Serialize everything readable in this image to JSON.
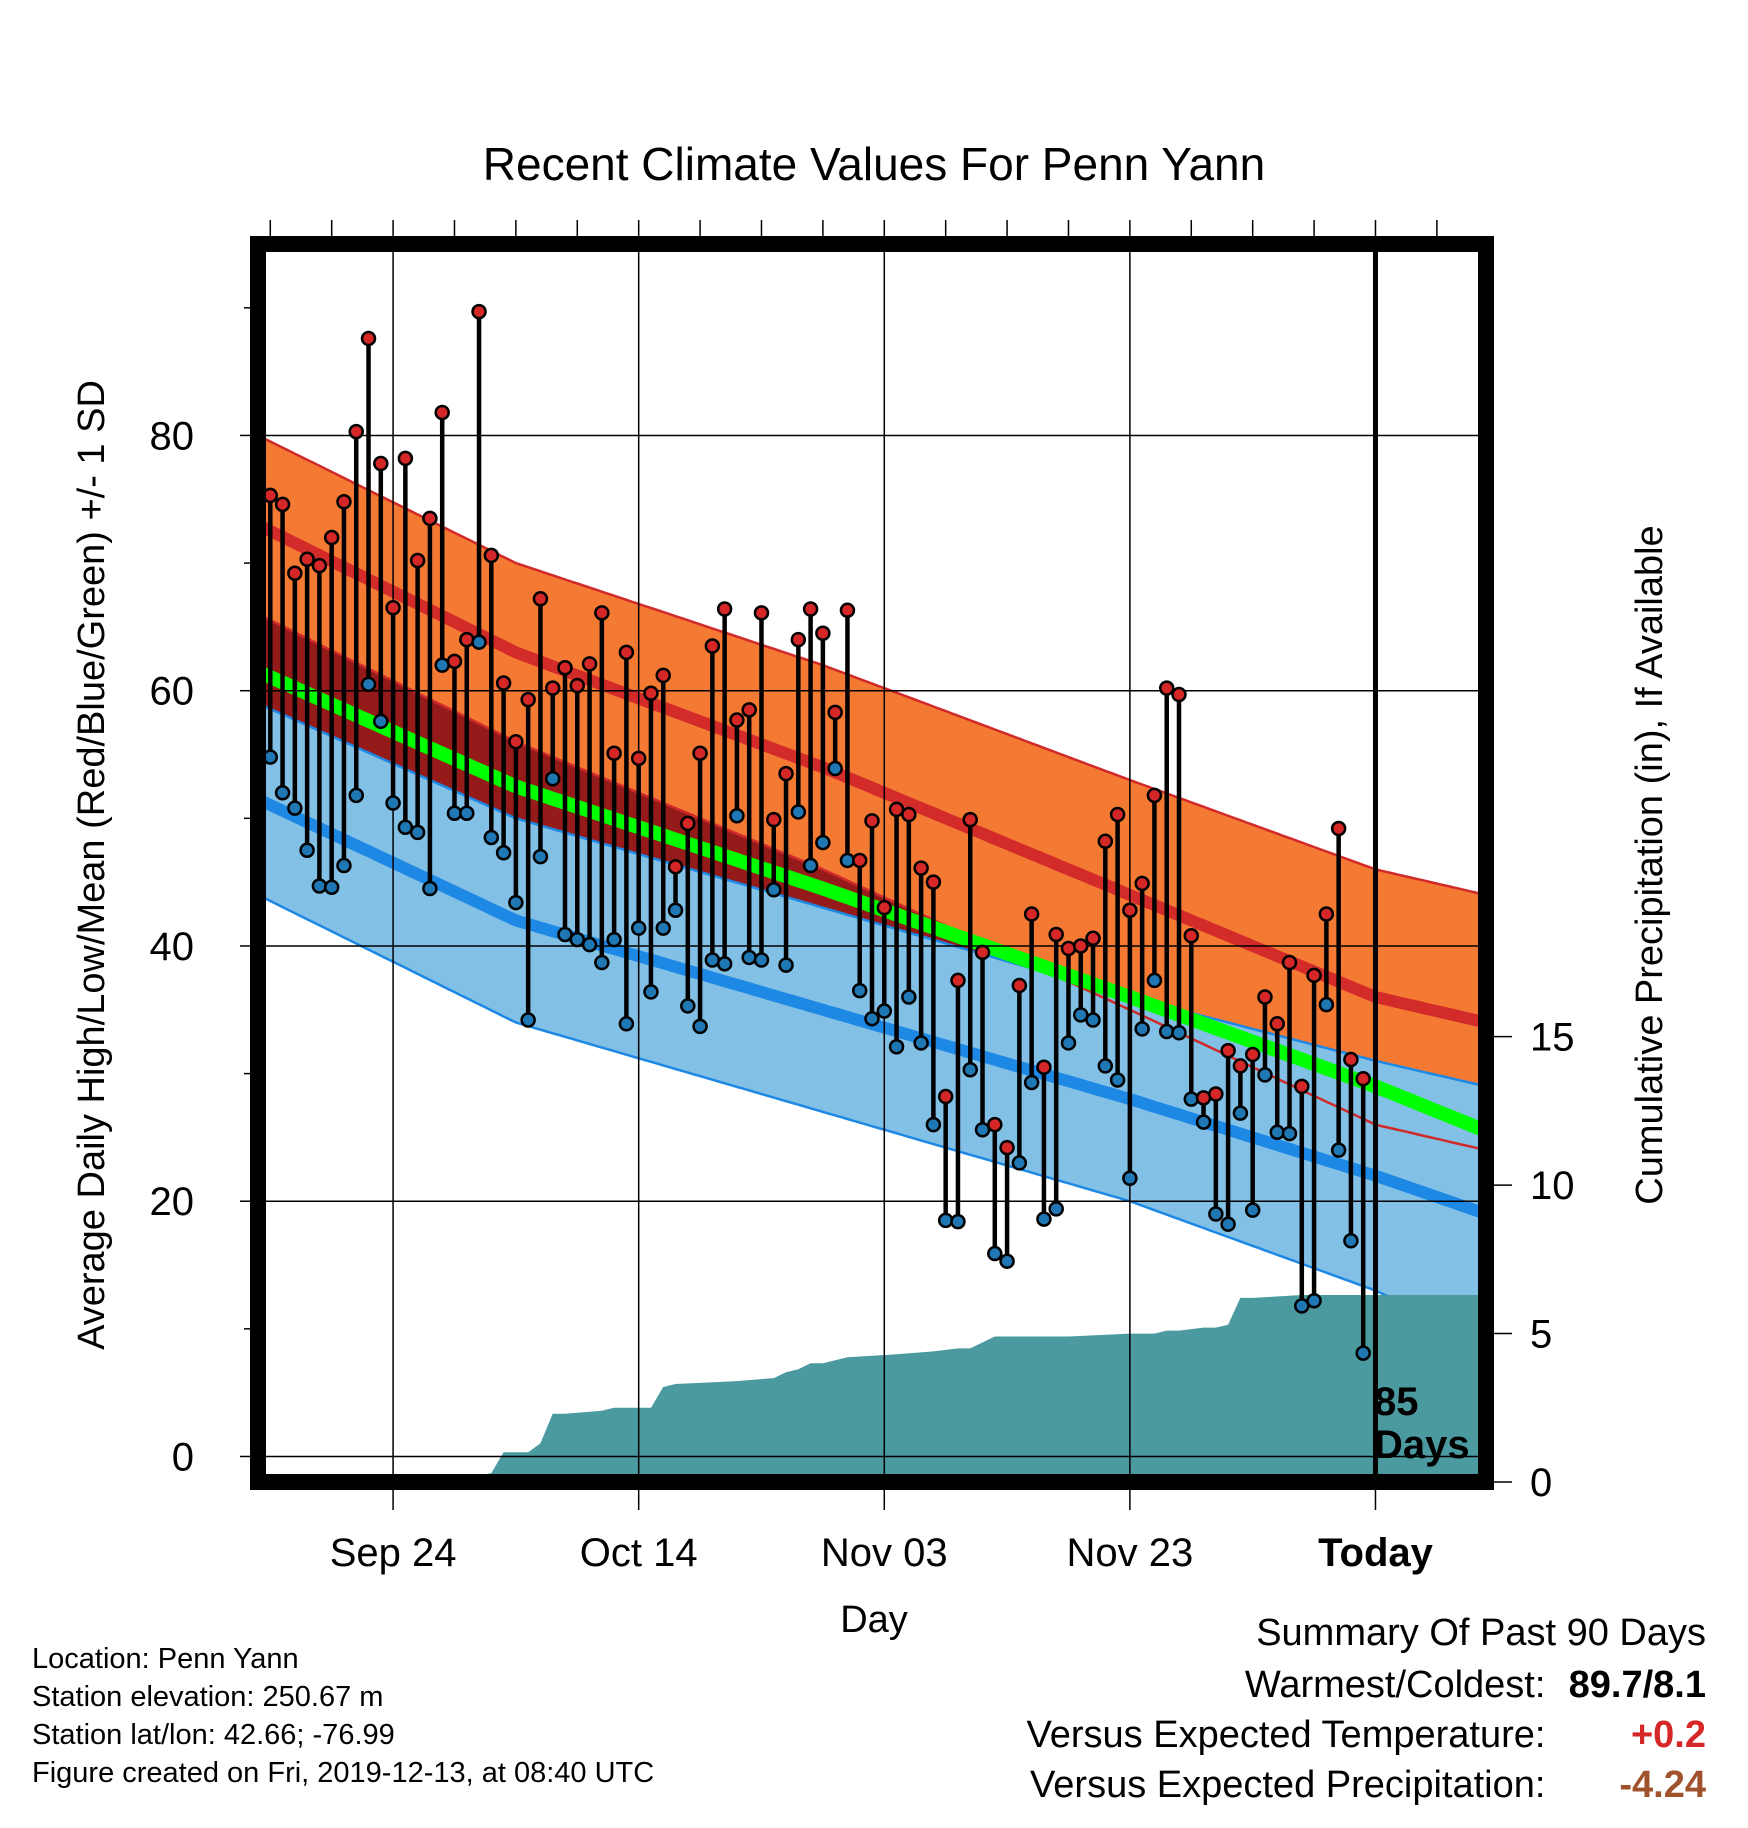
{
  "chart_data": {
    "type": "line",
    "title": "Recent Climate Values For Penn Yann",
    "xlabel": "Day",
    "ylabel_left": "Average Daily High/Low/Mean (Red/Blue/Green) +/- 1 SD",
    "ylabel_right": "Cumulative Precipitation (in), If Available",
    "x_ticks": [
      {
        "day": 10,
        "label": "Sep 24"
      },
      {
        "day": 30,
        "label": "Oct 14"
      },
      {
        "day": 50,
        "label": "Nov 03"
      },
      {
        "day": 70,
        "label": "Nov 23"
      },
      {
        "day": 90,
        "label": "Today"
      }
    ],
    "xlim": [
      -1,
      99
    ],
    "ylim_left": [
      -2,
      95
    ],
    "ylim_right": [
      0,
      41.7
    ],
    "y_ticks_left": [
      0,
      20,
      40,
      60,
      80
    ],
    "y_ticks_right": [
      0,
      5,
      10,
      15
    ],
    "today_marker": {
      "day": 90,
      "label_line1": "85",
      "label_line2": "Days"
    },
    "normals": {
      "days": [
        -1,
        20,
        45,
        70,
        90,
        99
      ],
      "high_mean": [
        73,
        63,
        54,
        44,
        36,
        34
      ],
      "high_sd": [
        7,
        7,
        8,
        9,
        10,
        10
      ],
      "low_mean": [
        51.5,
        42,
        35,
        28,
        22,
        19
      ],
      "low_sd": [
        7.5,
        8,
        8,
        8,
        9,
        10
      ],
      "avg_mean": [
        61.5,
        52.5,
        44.5,
        36,
        29,
        25.5
      ]
    },
    "series": [
      {
        "name": "High",
        "color": "#d62728",
        "days": [
          0,
          1,
          2,
          3,
          4,
          5,
          6,
          7,
          8,
          9,
          10,
          11,
          12,
          13,
          14,
          15,
          16,
          17,
          18,
          19,
          20,
          21,
          22,
          23,
          24,
          25,
          26,
          27,
          28,
          29,
          30,
          31,
          32,
          33,
          34,
          35,
          36,
          37,
          38,
          39,
          40,
          41,
          42,
          43,
          44,
          45,
          46,
          47,
          48,
          49,
          50,
          51,
          52,
          53,
          54,
          55,
          56,
          57,
          58,
          59,
          60,
          61,
          62,
          63,
          64,
          65,
          66,
          67,
          68,
          69,
          70,
          71,
          72,
          73,
          74,
          75,
          76,
          77,
          78,
          79,
          80,
          81,
          82,
          83,
          84,
          85,
          86,
          87,
          88,
          89
        ],
        "values": [
          75.3,
          74.6,
          69.2,
          70.3,
          69.8,
          72.0,
          74.8,
          80.3,
          87.6,
          77.8,
          66.5,
          78.2,
          70.2,
          73.5,
          81.8,
          62.3,
          64.0,
          89.7,
          70.6,
          60.6,
          56.0,
          59.3,
          67.2,
          60.2,
          61.8,
          60.4,
          62.1,
          66.1,
          55.1,
          63.0,
          54.7,
          59.8,
          61.2,
          46.2,
          49.6,
          55.1,
          63.5,
          66.4,
          57.7,
          58.5,
          66.1,
          49.9,
          53.5,
          64.0,
          66.4,
          64.5,
          58.3,
          66.3,
          46.7,
          49.8,
          43.0,
          50.7,
          50.3,
          46.1,
          45.0,
          28.2,
          37.3,
          49.9,
          39.5,
          26.0,
          24.2,
          36.9,
          42.5,
          30.5,
          40.9,
          39.8,
          40.0,
          40.6,
          48.2,
          50.3,
          42.8,
          44.9,
          51.8,
          60.2,
          59.7,
          40.8,
          28.1,
          28.4,
          31.8,
          30.6,
          31.5,
          36.0,
          33.9,
          38.7,
          29.0,
          37.7,
          42.5,
          49.2,
          31.1,
          29.6
        ]
      },
      {
        "name": "Low",
        "color": "#1f77b4",
        "days": [
          0,
          1,
          2,
          3,
          4,
          5,
          6,
          7,
          8,
          9,
          10,
          11,
          12,
          13,
          14,
          15,
          16,
          17,
          18,
          19,
          20,
          21,
          22,
          23,
          24,
          25,
          26,
          27,
          28,
          29,
          30,
          31,
          32,
          33,
          34,
          35,
          36,
          37,
          38,
          39,
          40,
          41,
          42,
          43,
          44,
          45,
          46,
          47,
          48,
          49,
          50,
          51,
          52,
          53,
          54,
          55,
          56,
          57,
          58,
          59,
          60,
          61,
          62,
          63,
          64,
          65,
          66,
          67,
          68,
          69,
          70,
          71,
          72,
          73,
          74,
          75,
          76,
          77,
          78,
          79,
          80,
          81,
          82,
          83,
          84,
          85,
          86,
          87,
          88,
          89
        ],
        "values": [
          54.8,
          52.0,
          50.8,
          47.5,
          44.7,
          44.6,
          46.3,
          51.8,
          60.5,
          57.6,
          51.2,
          49.3,
          48.9,
          44.5,
          62.0,
          50.4,
          50.4,
          63.8,
          48.5,
          47.3,
          43.4,
          34.2,
          47.0,
          53.1,
          40.9,
          40.5,
          40.1,
          38.7,
          40.5,
          33.9,
          41.4,
          36.4,
          41.4,
          42.8,
          35.3,
          33.7,
          38.9,
          38.6,
          50.2,
          39.1,
          38.9,
          44.4,
          38.5,
          50.5,
          46.3,
          48.1,
          53.9,
          46.7,
          36.5,
          34.3,
          34.9,
          32.1,
          36.0,
          32.4,
          26.0,
          18.5,
          18.4,
          30.3,
          25.6,
          15.9,
          15.3,
          23.0,
          29.3,
          18.6,
          19.4,
          32.4,
          34.6,
          34.2,
          30.6,
          29.5,
          21.8,
          33.5,
          37.3,
          33.3,
          33.2,
          28.0,
          26.2,
          19.0,
          18.2,
          26.9,
          19.3,
          29.9,
          25.4,
          25.3,
          11.8,
          12.2,
          35.4,
          24.0,
          16.9,
          8.1
        ]
      },
      {
        "name": "Cumulative Precipitation",
        "color": "#4a9a9f",
        "days": [
          -1,
          10,
          16,
          18,
          19,
          21,
          22,
          23,
          24,
          27,
          28,
          31,
          32,
          33,
          38,
          41,
          42,
          43,
          44,
          45,
          47,
          51,
          54,
          56,
          57,
          59,
          60,
          63,
          65,
          70,
          72,
          73,
          74,
          76,
          77,
          78,
          79,
          80,
          84,
          87,
          89,
          99
        ],
        "values": [
          0,
          0,
          0.15,
          0.3,
          1.0,
          1.0,
          1.3,
          2.3,
          2.3,
          2.4,
          2.5,
          2.5,
          3.2,
          3.3,
          3.4,
          3.5,
          3.7,
          3.8,
          4.0,
          4.0,
          4.2,
          4.3,
          4.4,
          4.5,
          4.5,
          4.9,
          4.9,
          4.9,
          4.9,
          5.0,
          5.0,
          5.1,
          5.1,
          5.2,
          5.2,
          5.3,
          6.2,
          6.2,
          6.3,
          6.3,
          6.3,
          6.3
        ]
      }
    ]
  },
  "info": {
    "location": "Location: Penn Yann",
    "elevation": "Station elevation: 250.67 m",
    "latlon": "Station lat/lon: 42.66; -76.99",
    "created": "Figure created on Fri, 2019-12-13, at 08:40 UTC"
  },
  "summary": {
    "heading": "Summary Of Past 90 Days",
    "warmest_coldest_label": "Warmest/Coldest:",
    "warmest_coldest_value": "89.7/8.1",
    "temp_label": "Versus Expected Temperature:",
    "temp_value": "+0.2",
    "temp_color": "#d62728",
    "precip_label": "Versus Expected Precipitation:",
    "precip_value": "-4.24",
    "precip_color": "#a0522d"
  }
}
